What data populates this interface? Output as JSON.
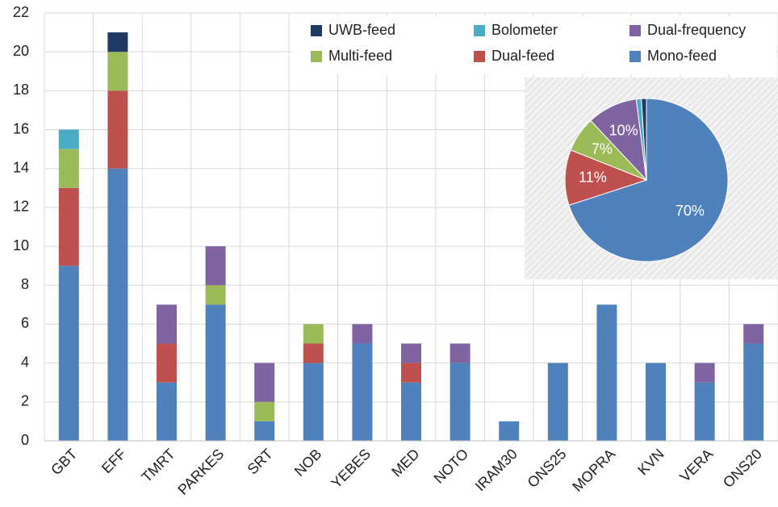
{
  "chart_data": [
    {
      "type": "bar",
      "stacked": true,
      "categories": [
        "GBT",
        "EFF",
        "TMRT",
        "PARKES",
        "SRT",
        "NOB",
        "YEBES",
        "MED",
        "NOTO",
        "IRAM30",
        "ONS25",
        "MOPRA",
        "KVN",
        "VERA",
        "ONS20"
      ],
      "series": [
        {
          "name": "Mono-feed",
          "color": "#4f81bd",
          "values": [
            9,
            14,
            3,
            7,
            1,
            4,
            5,
            3,
            4,
            1,
            4,
            7,
            4,
            3,
            5
          ]
        },
        {
          "name": "Dual-feed",
          "color": "#c0504d",
          "values": [
            4,
            4,
            2,
            0,
            0,
            1,
            0,
            1,
            0,
            0,
            0,
            0,
            0,
            0,
            0
          ]
        },
        {
          "name": "Multi-feed",
          "color": "#9bbb59",
          "values": [
            2,
            2,
            0,
            1,
            1,
            1,
            0,
            0,
            0,
            0,
            0,
            0,
            0,
            0,
            0
          ]
        },
        {
          "name": "Dual-frequency",
          "color": "#8064a2",
          "values": [
            0,
            0,
            2,
            2,
            2,
            0,
            1,
            1,
            1,
            0,
            0,
            0,
            0,
            1,
            1
          ]
        },
        {
          "name": "Bolometer",
          "color": "#4bacc6",
          "values": [
            1,
            0,
            0,
            0,
            0,
            0,
            0,
            0,
            0,
            0,
            0,
            0,
            0,
            0,
            0
          ]
        },
        {
          "name": "UWB-feed",
          "color": "#1f3864",
          "values": [
            0,
            1,
            0,
            0,
            0,
            0,
            0,
            0,
            0,
            0,
            0,
            0,
            0,
            0,
            0
          ]
        }
      ],
      "ylim": [
        0,
        22
      ],
      "yticks": [
        0,
        2,
        4,
        6,
        8,
        10,
        12,
        14,
        16,
        18,
        20,
        22
      ],
      "grid": true,
      "legend": "top-right"
    },
    {
      "type": "pie",
      "values": [
        70,
        11,
        7,
        10,
        1,
        1
      ],
      "value_labels": [
        "70%",
        "11%",
        "7%",
        "10%",
        null,
        null
      ],
      "colors": [
        "#4f81bd",
        "#c0504d",
        "#9bbb59",
        "#8064a2",
        "#4bacc6",
        "#1f3864"
      ]
    }
  ]
}
